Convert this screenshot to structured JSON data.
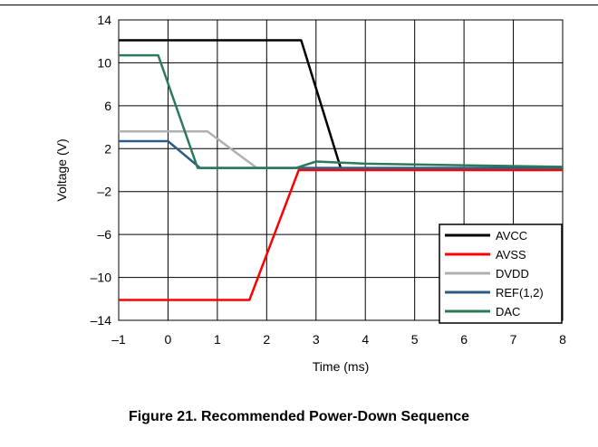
{
  "caption": "Figure 21. Recommended Power-Down Sequence",
  "chart_data": {
    "type": "line",
    "xlabel": "Time (ms)",
    "ylabel": "Voltage (V)",
    "xlim": [
      -1,
      8
    ],
    "ylim": [
      -14,
      14
    ],
    "x_ticks": [
      -1,
      0,
      1,
      2,
      3,
      4,
      5,
      6,
      7,
      8
    ],
    "y_ticks": [
      -14,
      -10,
      -6,
      -2,
      2,
      6,
      10,
      14
    ],
    "x_tick_labels": [
      "–1",
      "0",
      "1",
      "2",
      "3",
      "4",
      "5",
      "6",
      "7",
      "8"
    ],
    "y_tick_labels": [
      "–14",
      "–10",
      "–6",
      "–2",
      "2",
      "6",
      "10",
      "14"
    ],
    "grid": true,
    "legend_position": "bottom-right",
    "series": [
      {
        "name": "AVCC",
        "color": "#000000",
        "x": [
          -1,
          2.7,
          3.5,
          4.5,
          8
        ],
        "y": [
          12.1,
          12.1,
          0.2,
          0.1,
          0.1
        ]
      },
      {
        "name": "AVSS",
        "color": "#ff0000",
        "x": [
          -1,
          1.65,
          2.65,
          8
        ],
        "y": [
          -12.1,
          -12.1,
          0.0,
          0.0
        ]
      },
      {
        "name": "DVDD",
        "color": "#b0b0b0",
        "x": [
          -1,
          0.8,
          1.8,
          8
        ],
        "y": [
          3.6,
          3.6,
          0.2,
          0.2
        ]
      },
      {
        "name": "REF(1,2)",
        "color": "#2b5c84",
        "x": [
          -1,
          0,
          0.65,
          8
        ],
        "y": [
          2.7,
          2.7,
          0.2,
          0.2
        ]
      },
      {
        "name": "DAC",
        "color": "#2c7a5a",
        "x": [
          -1,
          -0.2,
          0.6,
          2.6,
          3.0,
          4.0,
          8
        ],
        "y": [
          10.7,
          10.7,
          0.2,
          0.2,
          0.8,
          0.6,
          0.3
        ]
      }
    ]
  }
}
